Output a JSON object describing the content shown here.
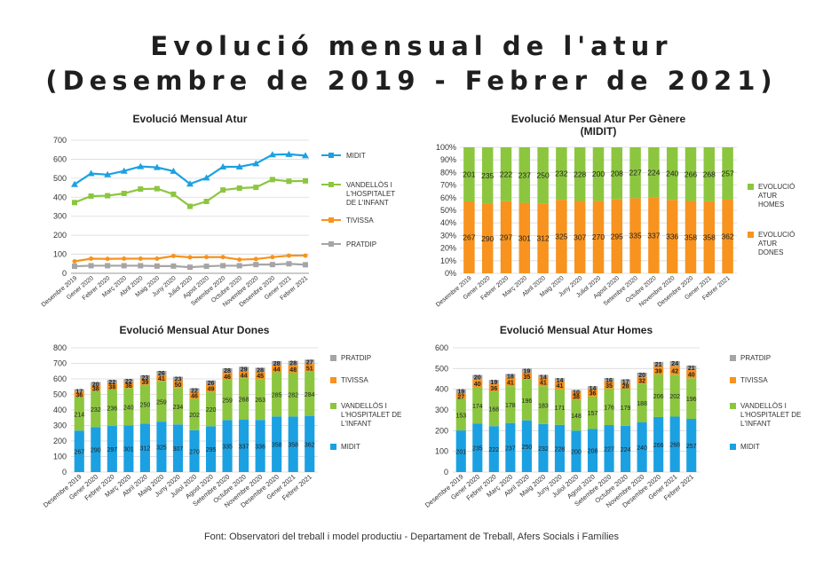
{
  "page": {
    "title_line1": "Evolució mensual de l'atur",
    "title_line2": "(Desembre de 2019 - Febrer de 2021)",
    "footer": "Font: Observatori del treball i model productiu - Departament de Treball, Afers Socials i Famílies"
  },
  "colors": {
    "midit": "#1ba1e2",
    "vandellos": "#8cc63f",
    "tivissa": "#f7931e",
    "pratdip": "#999999",
    "grid": "#d9d9d9"
  },
  "chart_data": [
    {
      "id": "line",
      "type": "line",
      "title": "Evolució Mensual Atur",
      "categories": [
        "Desembre 2019",
        "Gener 2020",
        "Febrer 2020",
        "Març 2020",
        "Abril 2020",
        "Maig 2020",
        "Juny 2020",
        "Juliol 2020",
        "Agost 2020",
        "Setembre 2020",
        "Octubre 2020",
        "Novembre 2020",
        "Desembre 2020",
        "Gener 2021",
        "Febrer 2021"
      ],
      "ylim": [
        0,
        700
      ],
      "yticks": [
        0,
        100,
        200,
        300,
        400,
        500,
        600,
        700
      ],
      "series": [
        {
          "name": "MIDIT",
          "color": "#1ba1e2",
          "legend_lines": [
            "MIDIT"
          ],
          "values": [
            468,
            525,
            519,
            538,
            562,
            557,
            537,
            470,
            502,
            560,
            560,
            577,
            624,
            626,
            619
          ]
        },
        {
          "name": "VANDELLÒS I L'HOSPITALET DE L'INFANT",
          "color": "#8cc63f",
          "legend_lines": [
            "VANDELLÒS I",
            "L'HOSPITALET",
            "DE L'INFANT"
          ],
          "values": [
            372,
            406,
            408,
            420,
            443,
            445,
            416,
            352,
            378,
            438,
            448,
            452,
            493,
            484,
            486
          ]
        },
        {
          "name": "TIVISSA",
          "color": "#f7931e",
          "legend_lines": [
            "TIVISSA"
          ],
          "values": [
            63,
            77,
            76,
            77,
            77,
            77,
            91,
            84,
            85,
            85,
            72,
            75,
            85,
            93,
            93
          ]
        },
        {
          "name": "PRATDIP",
          "color": "#a5a5a5",
          "legend_lines": [
            "PRATDIP"
          ],
          "values": [
            37,
            40,
            40,
            40,
            40,
            38,
            38,
            32,
            37,
            40,
            40,
            46,
            46,
            50,
            45
          ]
        }
      ]
    },
    {
      "id": "gender",
      "type": "bar",
      "stacked": "percent",
      "title": "Evolució Mensual Atur Per Gènere",
      "subtitle": "(MIDIT)",
      "categories": [
        "Desembre 2019",
        "Gener 2020",
        "Febrer 2020",
        "Març 2020",
        "Abril 2020",
        "Maig 2020",
        "Juny 2020",
        "Juliol 2020",
        "Agost 2020",
        "Setembre 2020",
        "Octubre 2020",
        "Novembre 2020",
        "Desembre 2020",
        "Gener 2021",
        "Febrer 2021"
      ],
      "yticks": [
        "0%",
        "10%",
        "20%",
        "30%",
        "40%",
        "50%",
        "60%",
        "70%",
        "80%",
        "90%",
        "100%"
      ],
      "series": [
        {
          "name": "EVOLUCIÓ ATUR DONES",
          "color": "#f7931e",
          "legend_lines": [
            "EVOLUCIÓ",
            "ATUR",
            "DONES"
          ],
          "values": [
            267,
            290,
            297,
            301,
            312,
            325,
            307,
            270,
            295,
            335,
            337,
            336,
            358,
            358,
            362
          ]
        },
        {
          "name": "EVOLUCIÓ ATUR HOMES",
          "color": "#8cc63f",
          "legend_lines": [
            "EVOLUCIÓ",
            "ATUR",
            "HOMES"
          ],
          "values": [
            201,
            235,
            222,
            237,
            250,
            232,
            228,
            200,
            208,
            227,
            224,
            240,
            266,
            268,
            257
          ]
        }
      ]
    },
    {
      "id": "dones",
      "type": "bar",
      "stacked": "absolute",
      "title": "Evolució Mensual Atur Dones",
      "categories": [
        "Desembre 2019",
        "Gener 2020",
        "Febrer 2020",
        "Març 2020",
        "Abril 2020",
        "Maig 2020",
        "Juny 2020",
        "Juliol 2020",
        "Agost 2020",
        "Setembre 2020",
        "Octubre 2020",
        "Novembre 2020",
        "Desembre 2020",
        "Gener 2021",
        "Febrer 2021"
      ],
      "ylim": [
        0,
        800
      ],
      "yticks": [
        0,
        100,
        200,
        300,
        400,
        500,
        600,
        700,
        800
      ],
      "series": [
        {
          "name": "MIDIT",
          "color": "#1ba1e2",
          "legend_lines": [
            "MIDIT"
          ],
          "values": [
            267,
            290,
            297,
            301,
            312,
            325,
            307,
            270,
            295,
            335,
            337,
            336,
            358,
            358,
            362
          ]
        },
        {
          "name": "VANDELLÒS I L'HOSPITALET DE L'INFANT",
          "color": "#8cc63f",
          "legend_lines": [
            "VANDELLÒS I",
            "L'HOSPITALET DE",
            "L'INFANT"
          ],
          "values": [
            214,
            232,
            236,
            240,
            250,
            259,
            234,
            202,
            220,
            259,
            268,
            263,
            285,
            282,
            284
          ]
        },
        {
          "name": "TIVISSA",
          "color": "#f7931e",
          "legend_lines": [
            "TIVISSA"
          ],
          "values": [
            36,
            38,
            38,
            36,
            39,
            41,
            50,
            46,
            49,
            46,
            44,
            45,
            44,
            48,
            51
          ]
        },
        {
          "name": "PRATDIP",
          "color": "#a5a5a5",
          "legend_lines": [
            "PRATDIP"
          ],
          "values": [
            17,
            20,
            22,
            22,
            23,
            26,
            23,
            22,
            26,
            28,
            29,
            28,
            28,
            28,
            27
          ]
        }
      ]
    },
    {
      "id": "homes",
      "type": "bar",
      "stacked": "absolute",
      "title": "Evolució Mensual Atur Homes",
      "categories": [
        "Desembre 2019",
        "Gener 2020",
        "Febrer 2020",
        "Març 2020",
        "Abril 2020",
        "Maig 2020",
        "Juny 2020",
        "Juliol 2020",
        "Agost 2020",
        "Setembre 2020",
        "Octubre 2020",
        "Novembre 2020",
        "Desembre 2020",
        "Gener 2021",
        "Febrer 2021"
      ],
      "ylim": [
        0,
        600
      ],
      "yticks": [
        0,
        100,
        200,
        300,
        400,
        500,
        600
      ],
      "series": [
        {
          "name": "MIDIT",
          "color": "#1ba1e2",
          "legend_lines": [
            "MIDIT"
          ],
          "values": [
            201,
            235,
            222,
            237,
            250,
            232,
            228,
            200,
            208,
            227,
            224,
            240,
            266,
            268,
            257
          ]
        },
        {
          "name": "VANDELLÒS I L'HOSPITALET DE L'INFANT",
          "color": "#8cc63f",
          "legend_lines": [
            "VANDELLÒS I",
            "L'HOSPITALET DE",
            "L'INFANT"
          ],
          "values": [
            153,
            174,
            168,
            178,
            196,
            183,
            171,
            148,
            157,
            176,
            179,
            188,
            206,
            202,
            196
          ]
        },
        {
          "name": "TIVISSA",
          "color": "#f7931e",
          "legend_lines": [
            "TIVISSA"
          ],
          "values": [
            27,
            40,
            36,
            41,
            35,
            41,
            41,
            38,
            36,
            35,
            28,
            32,
            39,
            42,
            40
          ]
        },
        {
          "name": "PRATDIP",
          "color": "#a5a5a5",
          "legend_lines": [
            "PRATDIP"
          ],
          "values": [
            19,
            20,
            19,
            18,
            19,
            14,
            14,
            10,
            14,
            16,
            17,
            20,
            21,
            24,
            21
          ]
        }
      ]
    }
  ]
}
